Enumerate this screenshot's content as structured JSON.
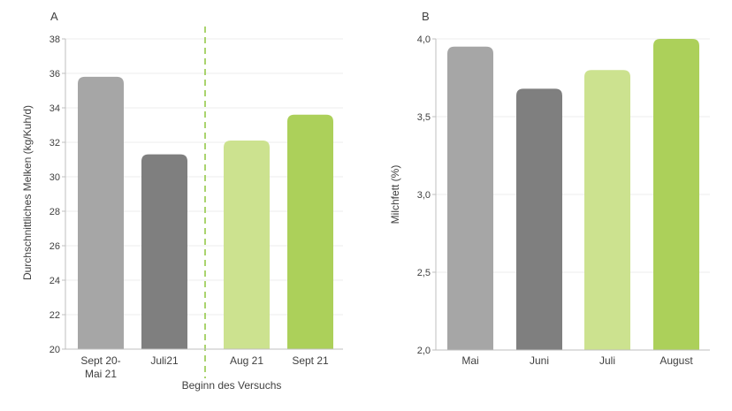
{
  "chart_data": [
    {
      "type": "bar",
      "panel": "A",
      "title": "",
      "xlabel": "",
      "ylabel": "Durchschnittliches Melken (kg/Kuh/d)",
      "ylim": [
        20,
        38
      ],
      "yticks": [
        "20",
        "22",
        "24",
        "26",
        "28",
        "30",
        "32",
        "34",
        "36",
        "38"
      ],
      "categories": [
        [
          "Sept 20-",
          "Mai 21"
        ],
        [
          "Juli21"
        ],
        [
          "Aug 21"
        ],
        [
          "Sept 21"
        ]
      ],
      "values": [
        35.8,
        31.3,
        32.1,
        33.6
      ],
      "colors": [
        "#a6a6a6",
        "#7f7f7f",
        "#cce28f",
        "#acd05a"
      ],
      "divider_color": "#8dc63f",
      "annotation": "Beginn des Versuchs",
      "grid": true
    },
    {
      "type": "bar",
      "panel": "B",
      "title": "",
      "xlabel": "",
      "ylabel": "Milchfett (%)",
      "ylim": [
        2.0,
        4.0
      ],
      "yticks": [
        "2,0",
        "2,5",
        "3,0",
        "3,5",
        "4,0"
      ],
      "categories": [
        [
          "Mai"
        ],
        [
          "Juni"
        ],
        [
          "Juli"
        ],
        [
          "August"
        ]
      ],
      "values": [
        3.95,
        3.68,
        3.8,
        4.0
      ],
      "colors": [
        "#a6a6a6",
        "#7f7f7f",
        "#cce28f",
        "#acd05a"
      ],
      "grid": true
    }
  ]
}
